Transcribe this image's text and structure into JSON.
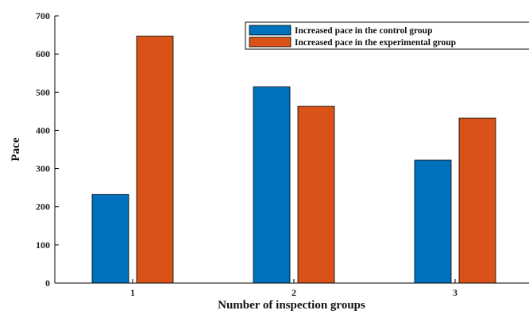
{
  "chart_data": {
    "type": "bar",
    "title": "",
    "xlabel": "Number of inspection groups",
    "ylabel": "Pace",
    "categories": [
      "1",
      "2",
      "3"
    ],
    "ylim": [
      0,
      700
    ],
    "yticks": [
      0,
      100,
      200,
      300,
      400,
      500,
      600,
      700
    ],
    "series": [
      {
        "name": "Increased pace in the control group",
        "values": [
          232,
          514,
          322
        ],
        "color": "#0072BD"
      },
      {
        "name": "Increased pace in the experimental group",
        "values": [
          647,
          463,
          432
        ],
        "color": "#D95319"
      }
    ],
    "legend_position": "top-right",
    "grid": false
  }
}
